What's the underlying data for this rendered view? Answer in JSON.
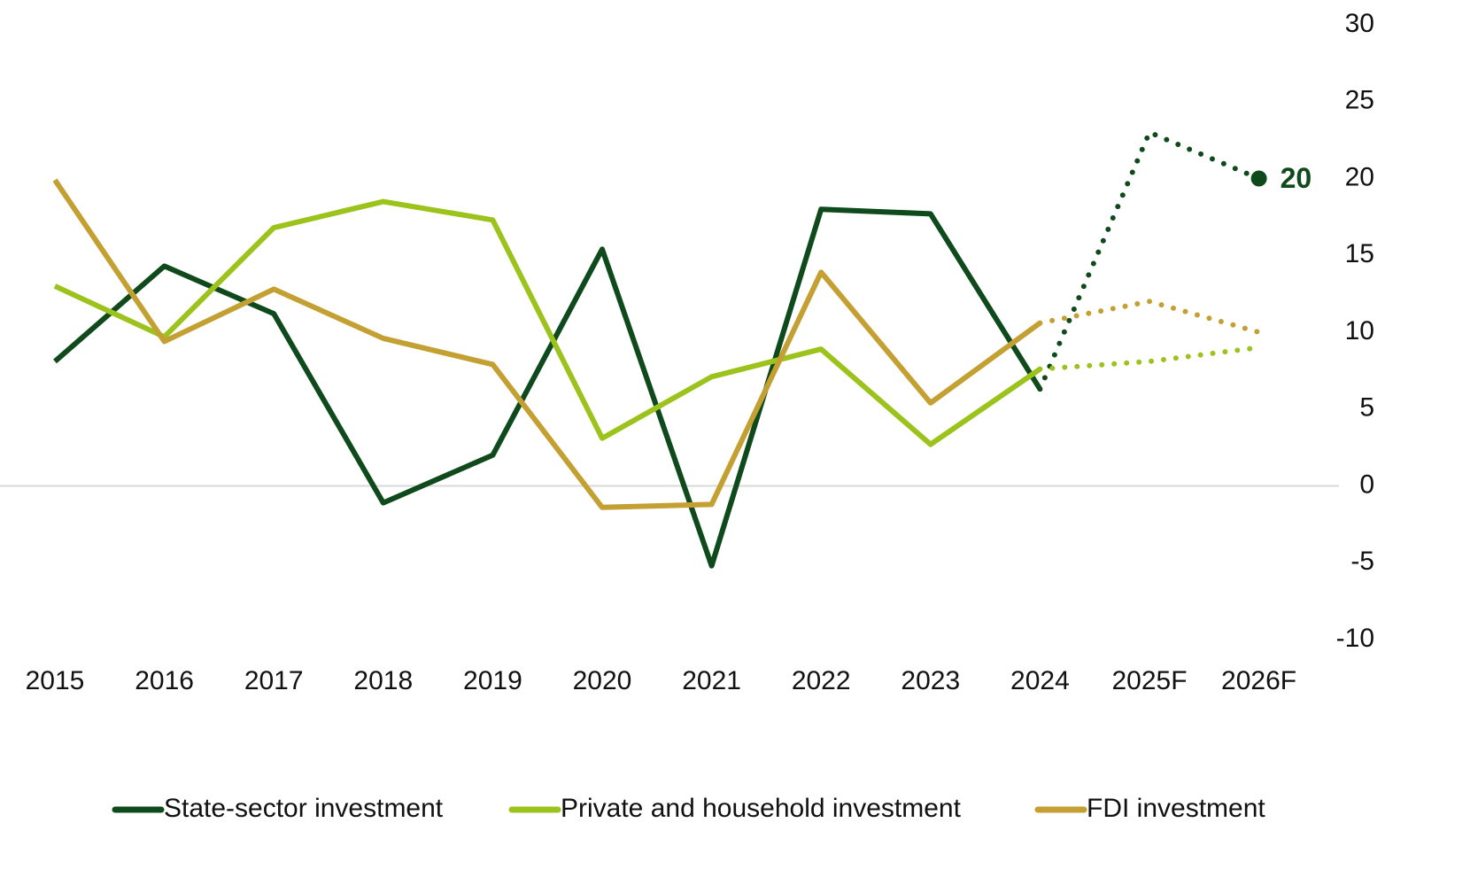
{
  "chart_data": {
    "type": "line",
    "categories": [
      "2015",
      "2016",
      "2017",
      "2018",
      "2019",
      "2020",
      "2021",
      "2022",
      "2023",
      "2024",
      "2025F",
      "2026F"
    ],
    "dotted_from_category": "2024",
    "series": [
      {
        "name": "State-sector investment",
        "color": "#0f4a1c",
        "values": [
          8.1,
          14.3,
          11.2,
          -1.1,
          2.0,
          15.4,
          -5.2,
          18.0,
          17.7,
          6.3,
          23.0,
          20
        ],
        "value_labels": [
          null,
          null,
          null,
          null,
          null,
          null,
          null,
          null,
          null,
          null,
          null,
          "20"
        ]
      },
      {
        "name": "Private and household investment",
        "color": "#9bc31c",
        "values": [
          13.0,
          9.7,
          16.8,
          18.5,
          17.3,
          3.1,
          7.1,
          8.9,
          2.7,
          7.6,
          8.1,
          9.0
        ]
      },
      {
        "name": "FDI investment",
        "color": "#c4a032",
        "values": [
          19.9,
          9.4,
          12.8,
          9.6,
          7.9,
          -1.4,
          -1.2,
          13.9,
          5.4,
          10.6,
          12.0,
          10.0
        ]
      }
    ],
    "ylim": [
      -10,
      30
    ],
    "yticks": [
      -10,
      -5,
      0,
      5,
      10,
      15,
      20,
      25,
      30
    ],
    "zero_line": true,
    "legend": "bottom"
  }
}
